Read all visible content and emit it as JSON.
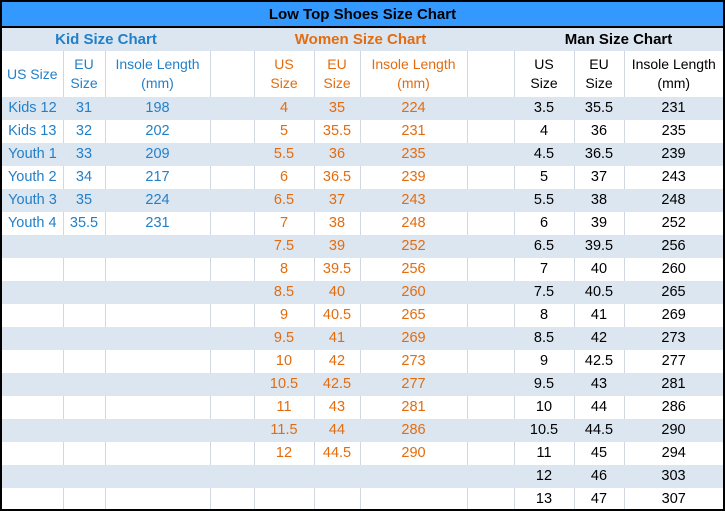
{
  "title": "Low Top Shoes Size Chart",
  "colors": {
    "outer_border": "#000000",
    "title_bar_bg": "#3399FF",
    "title_text": "#000000",
    "band_bg": "#DCE6F1",
    "white_bg": "#FFFFFF",
    "grid_line": "#D0D7E0",
    "kid_text": "#2380C8",
    "women_text": "#E36C0E",
    "man_text": "#000000"
  },
  "chart_data": {
    "type": "table",
    "title": "Low Top Shoes Size Chart",
    "sections": [
      {
        "key": "kid",
        "name": "Kid Size Chart",
        "columns": [
          "US Size",
          "EU Size",
          "Insole Length (mm)"
        ],
        "header_lines": [
          [
            "US Size",
            ""
          ],
          [
            "EU",
            "Size"
          ],
          [
            "Insole Length",
            "(mm)"
          ]
        ],
        "rows": [
          [
            "Kids 12",
            "31",
            "198"
          ],
          [
            "Kids 13",
            "32",
            "202"
          ],
          [
            "Youth 1",
            "33",
            "209"
          ],
          [
            "Youth 2",
            "34",
            "217"
          ],
          [
            "Youth 3",
            "35",
            "224"
          ],
          [
            "Youth 4",
            "35.5",
            "231"
          ]
        ]
      },
      {
        "key": "women",
        "name": "Women Size Chart",
        "columns": [
          "US Size",
          "EU Size",
          "Insole Length (mm)"
        ],
        "header_lines": [
          [
            "US",
            "Size"
          ],
          [
            "EU",
            "Size"
          ],
          [
            "Insole Length",
            "(mm)"
          ]
        ],
        "rows": [
          [
            "4",
            "35",
            "224"
          ],
          [
            "5",
            "35.5",
            "231"
          ],
          [
            "5.5",
            "36",
            "235"
          ],
          [
            "6",
            "36.5",
            "239"
          ],
          [
            "6.5",
            "37",
            "243"
          ],
          [
            "7",
            "38",
            "248"
          ],
          [
            "7.5",
            "39",
            "252"
          ],
          [
            "8",
            "39.5",
            "256"
          ],
          [
            "8.5",
            "40",
            "260"
          ],
          [
            "9",
            "40.5",
            "265"
          ],
          [
            "9.5",
            "41",
            "269"
          ],
          [
            "10",
            "42",
            "273"
          ],
          [
            "10.5",
            "42.5",
            "277"
          ],
          [
            "11",
            "43",
            "281"
          ],
          [
            "11.5",
            "44",
            "286"
          ],
          [
            "12",
            "44.5",
            "290"
          ]
        ]
      },
      {
        "key": "man",
        "name": "Man Size Chart",
        "columns": [
          "US Size",
          "EU Size",
          "Insole Length (mm)"
        ],
        "header_lines": [
          [
            "US",
            "Size"
          ],
          [
            "EU",
            "Size"
          ],
          [
            "Insole Length",
            "(mm)"
          ]
        ],
        "rows": [
          [
            "3.5",
            "35.5",
            "231"
          ],
          [
            "4",
            "36",
            "235"
          ],
          [
            "4.5",
            "36.5",
            "239"
          ],
          [
            "5",
            "37",
            "243"
          ],
          [
            "5.5",
            "38",
            "248"
          ],
          [
            "6",
            "39",
            "252"
          ],
          [
            "6.5",
            "39.5",
            "256"
          ],
          [
            "7",
            "40",
            "260"
          ],
          [
            "7.5",
            "40.5",
            "265"
          ],
          [
            "8",
            "41",
            "269"
          ],
          [
            "8.5",
            "42",
            "273"
          ],
          [
            "9",
            "42.5",
            "277"
          ],
          [
            "9.5",
            "43",
            "281"
          ],
          [
            "10",
            "44",
            "286"
          ],
          [
            "10.5",
            "44.5",
            "290"
          ],
          [
            "11",
            "45",
            "294"
          ],
          [
            "12",
            "46",
            "303"
          ],
          [
            "13",
            "47",
            "307"
          ]
        ]
      }
    ]
  }
}
